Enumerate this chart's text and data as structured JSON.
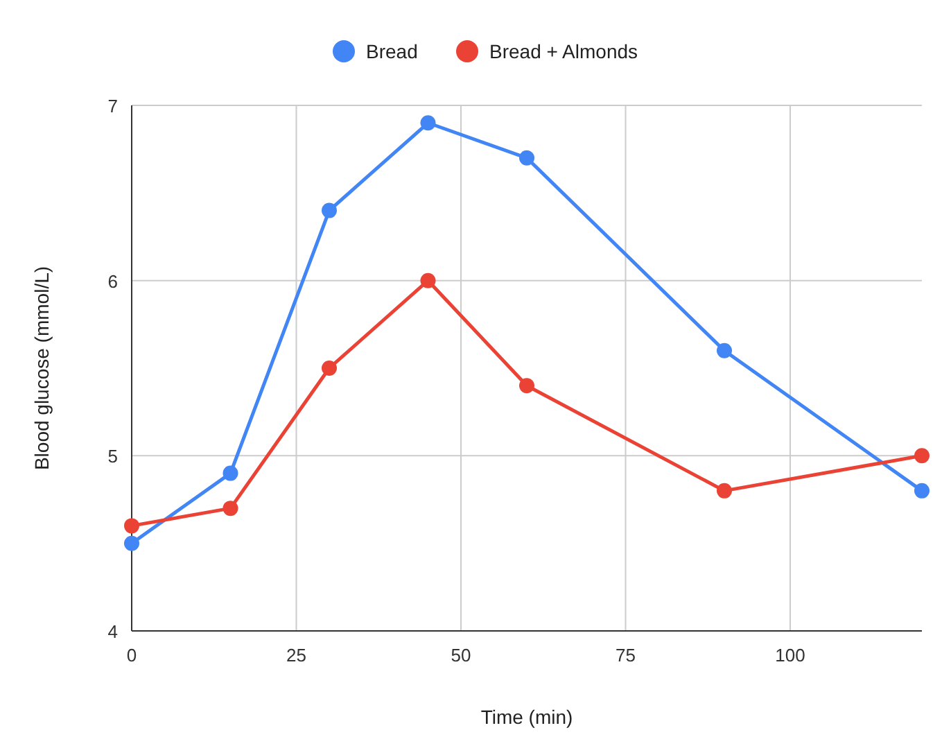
{
  "chart_data": {
    "type": "line",
    "xlabel": "Time (min)",
    "ylabel": "Blood glucose (mmol/L)",
    "x": [
      0,
      15,
      30,
      45,
      60,
      90,
      120
    ],
    "series": [
      {
        "name": "Bread",
        "color": "#4285f4",
        "values": [
          4.5,
          4.9,
          6.4,
          6.9,
          6.7,
          5.6,
          4.8
        ]
      },
      {
        "name": "Bread + Almonds",
        "color": "#ea4335",
        "values": [
          4.6,
          4.7,
          5.5,
          6.0,
          5.4,
          4.8,
          5.0
        ]
      }
    ],
    "xlim": [
      0,
      120
    ],
    "xticks": [
      0,
      25,
      50,
      75,
      100
    ],
    "ylim": [
      4,
      7
    ],
    "yticks": [
      4,
      5,
      6,
      7
    ],
    "grid": true,
    "legend": "top",
    "marker": "circle",
    "line_style": "solid"
  }
}
